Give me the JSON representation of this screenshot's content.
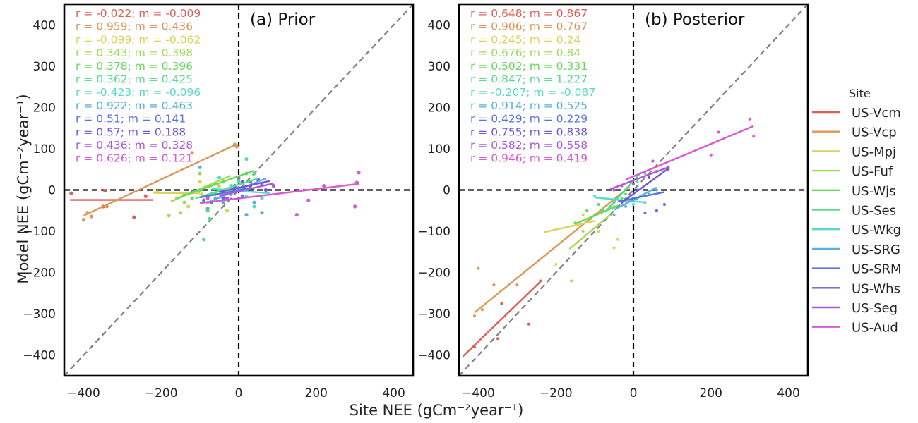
{
  "chart_data": [
    {
      "type": "scatter",
      "title": "(a) Prior",
      "xlim": [
        -450,
        450
      ],
      "ylim": [
        -450,
        450
      ],
      "xticks": [
        -400,
        -200,
        0,
        200,
        400
      ],
      "yticks": [
        -400,
        -300,
        -200,
        -100,
        0,
        100,
        200,
        300,
        400
      ],
      "annotations": [
        {
          "site": "US-Vcm",
          "text": "r = -0.022; m = -0.009"
        },
        {
          "site": "US-Vcp",
          "text": "r = 0.959; m = 0.436"
        },
        {
          "site": "US-Mpj",
          "text": "r = -0.099; m = -0.062"
        },
        {
          "site": "US-Fuf",
          "text": "r = 0.343; m = 0.398"
        },
        {
          "site": "US-Wjs",
          "text": "r = 0.378; m = 0.396"
        },
        {
          "site": "US-Ses",
          "text": "r = 0.362; m = 0.425"
        },
        {
          "site": "US-Wkg",
          "text": "r = -0.423; m = -0.096"
        },
        {
          "site": "US-SRG",
          "text": "r = 0.922; m = 0.463"
        },
        {
          "site": "US-SRM",
          "text": "r = 0.51; m = 0.141"
        },
        {
          "site": "US-Whs",
          "text": "r = 0.57; m = 0.188"
        },
        {
          "site": "US-Seg",
          "text": "r = 0.436; m = 0.328"
        },
        {
          "site": "US-Aud",
          "text": "r = 0.626; m = 0.121"
        }
      ],
      "fit_lines": [
        {
          "site": "US-Vcm",
          "x": [
            -435,
            -220
          ],
          "y": [
            -24,
            -24
          ]
        },
        {
          "site": "US-Vcp",
          "x": [
            -400,
            -10
          ],
          "y": [
            -62,
            109
          ]
        },
        {
          "site": "US-Mpj",
          "x": [
            -220,
            -100
          ],
          "y": [
            -7,
            -8
          ]
        },
        {
          "site": "US-Fuf",
          "x": [
            -175,
            -20
          ],
          "y": [
            -28,
            35
          ]
        },
        {
          "site": "US-Wjs",
          "x": [
            -160,
            40
          ],
          "y": [
            -20,
            47
          ]
        },
        {
          "site": "US-Ses",
          "x": [
            -110,
            50
          ],
          "y": [
            -20,
            28
          ]
        },
        {
          "site": "US-Wkg",
          "x": [
            -70,
            80
          ],
          "y": [
            3,
            -8
          ]
        },
        {
          "site": "US-SRG",
          "x": [
            -80,
            70
          ],
          "y": [
            -30,
            28
          ]
        },
        {
          "site": "US-SRM",
          "x": [
            -100,
            30
          ],
          "y": [
            -18,
            5
          ]
        },
        {
          "site": "US-Whs",
          "x": [
            -50,
            80
          ],
          "y": [
            -5,
            22
          ]
        },
        {
          "site": "US-Seg",
          "x": [
            -50,
            90
          ],
          "y": [
            -14,
            16
          ]
        },
        {
          "site": "US-Aud",
          "x": [
            -100,
            310
          ],
          "y": [
            -32,
            15
          ]
        }
      ],
      "points": [
        {
          "site": "US-Vcm",
          "x": [
            -432,
            -350,
            -345,
            -270,
            -240
          ],
          "y": [
            -8,
            -40,
            -2,
            -66,
            -15
          ]
        },
        {
          "site": "US-Vcp",
          "x": [
            -400,
            -390,
            -380,
            -340,
            -10,
            -5,
            -120
          ],
          "y": [
            -72,
            -55,
            -64,
            -40,
            110,
            105,
            90
          ]
        },
        {
          "site": "US-Mpj",
          "x": [
            -210,
            -130,
            -100,
            -95,
            -50,
            -30
          ],
          "y": [
            -5,
            -40,
            20,
            -10,
            10,
            -50
          ]
        },
        {
          "site": "US-Fuf",
          "x": [
            -180,
            -160,
            -150,
            -140,
            -100,
            -80,
            -60,
            -40
          ],
          "y": [
            -62,
            -20,
            -55,
            -30,
            40,
            -30,
            15,
            -5
          ]
        },
        {
          "site": "US-Wjs",
          "x": [
            -140,
            -120,
            -100,
            -80,
            -60,
            -40,
            -20,
            0,
            20
          ],
          "y": [
            -10,
            -20,
            0,
            -50,
            -10,
            20,
            5,
            25,
            40
          ]
        },
        {
          "site": "US-Ses",
          "x": [
            -90,
            -75,
            -40,
            -20,
            0,
            20,
            40
          ],
          "y": [
            -120,
            -70,
            -30,
            10,
            20,
            75,
            40
          ]
        },
        {
          "site": "US-Wkg",
          "x": [
            -70,
            -50,
            -30,
            0,
            20,
            40,
            60
          ],
          "y": [
            -10,
            30,
            -20,
            5,
            -15,
            -40,
            -20
          ]
        },
        {
          "site": "US-SRG",
          "x": [
            -100,
            -80,
            -60,
            -40,
            -20,
            0,
            20,
            40,
            60
          ],
          "y": [
            55,
            -45,
            -20,
            -30,
            -10,
            5,
            -60,
            -30,
            -55
          ]
        },
        {
          "site": "US-SRM",
          "x": [
            -120,
            -90,
            -70,
            -40,
            -10,
            10,
            30
          ],
          "y": [
            -5,
            -25,
            -30,
            -20,
            10,
            -15,
            20
          ]
        },
        {
          "site": "US-Whs",
          "x": [
            -40,
            -10,
            10,
            30,
            50,
            70
          ],
          "y": [
            -15,
            5,
            20,
            10,
            25,
            0
          ]
        },
        {
          "site": "US-Seg",
          "x": [
            -30,
            0,
            20,
            60,
            90
          ],
          "y": [
            -20,
            30,
            0,
            15,
            10
          ]
        },
        {
          "site": "US-Aud",
          "x": [
            -80,
            150,
            180,
            220,
            300,
            305,
            310
          ],
          "y": [
            -20,
            -60,
            -25,
            10,
            -40,
            18,
            42
          ]
        }
      ]
    },
    {
      "type": "scatter",
      "title": "(b) Posterior",
      "xlim": [
        -450,
        450
      ],
      "ylim": [
        -450,
        450
      ],
      "xticks": [
        -400,
        -200,
        0,
        200,
        400
      ],
      "yticks": [
        -400,
        -300,
        -200,
        -100,
        0,
        100,
        200,
        300,
        400
      ],
      "annotations": [
        {
          "site": "US-Vcm",
          "text": "r = 0.648; m = 0.867"
        },
        {
          "site": "US-Vcp",
          "text": "r = 0.906; m = 0.767"
        },
        {
          "site": "US-Mpj",
          "text": "r = 0.245; m = 0.24"
        },
        {
          "site": "US-Fuf",
          "text": "r = 0.676; m = 0.84"
        },
        {
          "site": "US-Wjs",
          "text": "r = 0.502; m = 0.331"
        },
        {
          "site": "US-Ses",
          "text": "r = 0.847; m = 1.227"
        },
        {
          "site": "US-Wkg",
          "text": "r = -0.207; m = -0.087"
        },
        {
          "site": "US-SRG",
          "text": "r = 0.914; m = 0.525"
        },
        {
          "site": "US-SRM",
          "text": "r = 0.429; m = 0.229"
        },
        {
          "site": "US-Whs",
          "text": "r = 0.755; m = 0.838"
        },
        {
          "site": "US-Seg",
          "text": "r = 0.582; m = 0.558"
        },
        {
          "site": "US-Aud",
          "text": "r = 0.946; m = 0.419"
        }
      ],
      "fit_lines": [
        {
          "site": "US-Vcm",
          "x": [
            -440,
            -240
          ],
          "y": [
            -403,
            -222
          ]
        },
        {
          "site": "US-Vcp",
          "x": [
            -410,
            -10
          ],
          "y": [
            -297,
            8
          ]
        },
        {
          "site": "US-Mpj",
          "x": [
            -230,
            -100
          ],
          "y": [
            -102,
            -75
          ]
        },
        {
          "site": "US-Fuf",
          "x": [
            -165,
            -60
          ],
          "y": [
            -143,
            -60
          ]
        },
        {
          "site": "US-Wjs",
          "x": [
            -150,
            -40
          ],
          "y": [
            -82,
            -38
          ]
        },
        {
          "site": "US-Ses",
          "x": [
            -70,
            20
          ],
          "y": [
            -50,
            43
          ]
        },
        {
          "site": "US-Wkg",
          "x": [
            -100,
            30
          ],
          "y": [
            -18,
            -30
          ]
        },
        {
          "site": "US-SRG",
          "x": [
            -50,
            60
          ],
          "y": [
            -48,
            6
          ]
        },
        {
          "site": "US-SRM",
          "x": [
            -40,
            80
          ],
          "y": [
            -28,
            -5
          ]
        },
        {
          "site": "US-Whs",
          "x": [
            -30,
            90
          ],
          "y": [
            -30,
            52
          ]
        },
        {
          "site": "US-Seg",
          "x": [
            -60,
            90
          ],
          "y": [
            2,
            55
          ]
        },
        {
          "site": "US-Aud",
          "x": [
            -20,
            310
          ],
          "y": [
            25,
            155
          ]
        }
      ],
      "points": [
        {
          "site": "US-Vcm",
          "x": [
            -410,
            -350,
            -340,
            -270,
            -240
          ],
          "y": [
            -380,
            -360,
            -275,
            -325,
            -220
          ]
        },
        {
          "site": "US-Vcp",
          "x": [
            -410,
            -400,
            -390,
            -360,
            -300
          ],
          "y": [
            -305,
            -190,
            -290,
            -230,
            -230
          ]
        },
        {
          "site": "US-Mpj",
          "x": [
            -200,
            -130,
            -110,
            -90,
            -50,
            -40
          ],
          "y": [
            -180,
            -60,
            -70,
            -100,
            -140,
            -120
          ]
        },
        {
          "site": "US-Fuf",
          "x": [
            -160,
            -130,
            -100,
            -80,
            -50
          ],
          "y": [
            -220,
            -100,
            -60,
            -50,
            -40
          ]
        },
        {
          "site": "US-Wjs",
          "x": [
            -150,
            -120,
            -90,
            -60,
            -30
          ],
          "y": [
            -80,
            -50,
            -35,
            -60,
            -20
          ]
        },
        {
          "site": "US-Ses",
          "x": [
            -80,
            -50,
            -20,
            10,
            30
          ],
          "y": [
            -50,
            -30,
            -10,
            20,
            40
          ]
        },
        {
          "site": "US-Wkg",
          "x": [
            -100,
            -60,
            -30,
            0,
            30
          ],
          "y": [
            -15,
            -40,
            -25,
            -35,
            -30
          ]
        },
        {
          "site": "US-SRG",
          "x": [
            -50,
            -20,
            10,
            40,
            60
          ],
          "y": [
            -60,
            -40,
            -20,
            -10,
            0
          ]
        },
        {
          "site": "US-SRM",
          "x": [
            -30,
            0,
            30,
            60,
            80
          ],
          "y": [
            -30,
            -20,
            -55,
            -50,
            -35
          ]
        },
        {
          "site": "US-Whs",
          "x": [
            -20,
            10,
            40,
            60,
            90
          ],
          "y": [
            -25,
            0,
            30,
            45,
            55
          ]
        },
        {
          "site": "US-Seg",
          "x": [
            -50,
            0,
            50,
            90
          ],
          "y": [
            0,
            15,
            70,
            50
          ]
        },
        {
          "site": "US-Aud",
          "x": [
            -30,
            200,
            310,
            300,
            220
          ],
          "y": [
            10,
            85,
            130,
            172,
            140
          ]
        }
      ]
    }
  ],
  "axes_labels": {
    "x": "Site NEE (gCm⁻²year⁻¹)",
    "y": "Model NEE (gCm⁻²year⁻¹)"
  },
  "legend": {
    "title": "Site",
    "placement": "right",
    "entries": [
      {
        "name": "US-Vcm",
        "color": "#db5f57"
      },
      {
        "name": "US-Vcp",
        "color": "#db9857"
      },
      {
        "name": "US-Mpj",
        "color": "#d9d357"
      },
      {
        "name": "US-Fuf",
        "color": "#a1db57"
      },
      {
        "name": "US-Wjs",
        "color": "#63db57"
      },
      {
        "name": "US-Ses",
        "color": "#57db8c"
      },
      {
        "name": "US-Wkg",
        "color": "#57dbc8"
      },
      {
        "name": "US-SRG",
        "color": "#57b1db"
      },
      {
        "name": "US-SRM",
        "color": "#5775db"
      },
      {
        "name": "US-Whs",
        "color": "#6f57db"
      },
      {
        "name": "US-Seg",
        "color": "#a957db"
      },
      {
        "name": "US-Aud",
        "color": "#db57d3"
      }
    ]
  }
}
